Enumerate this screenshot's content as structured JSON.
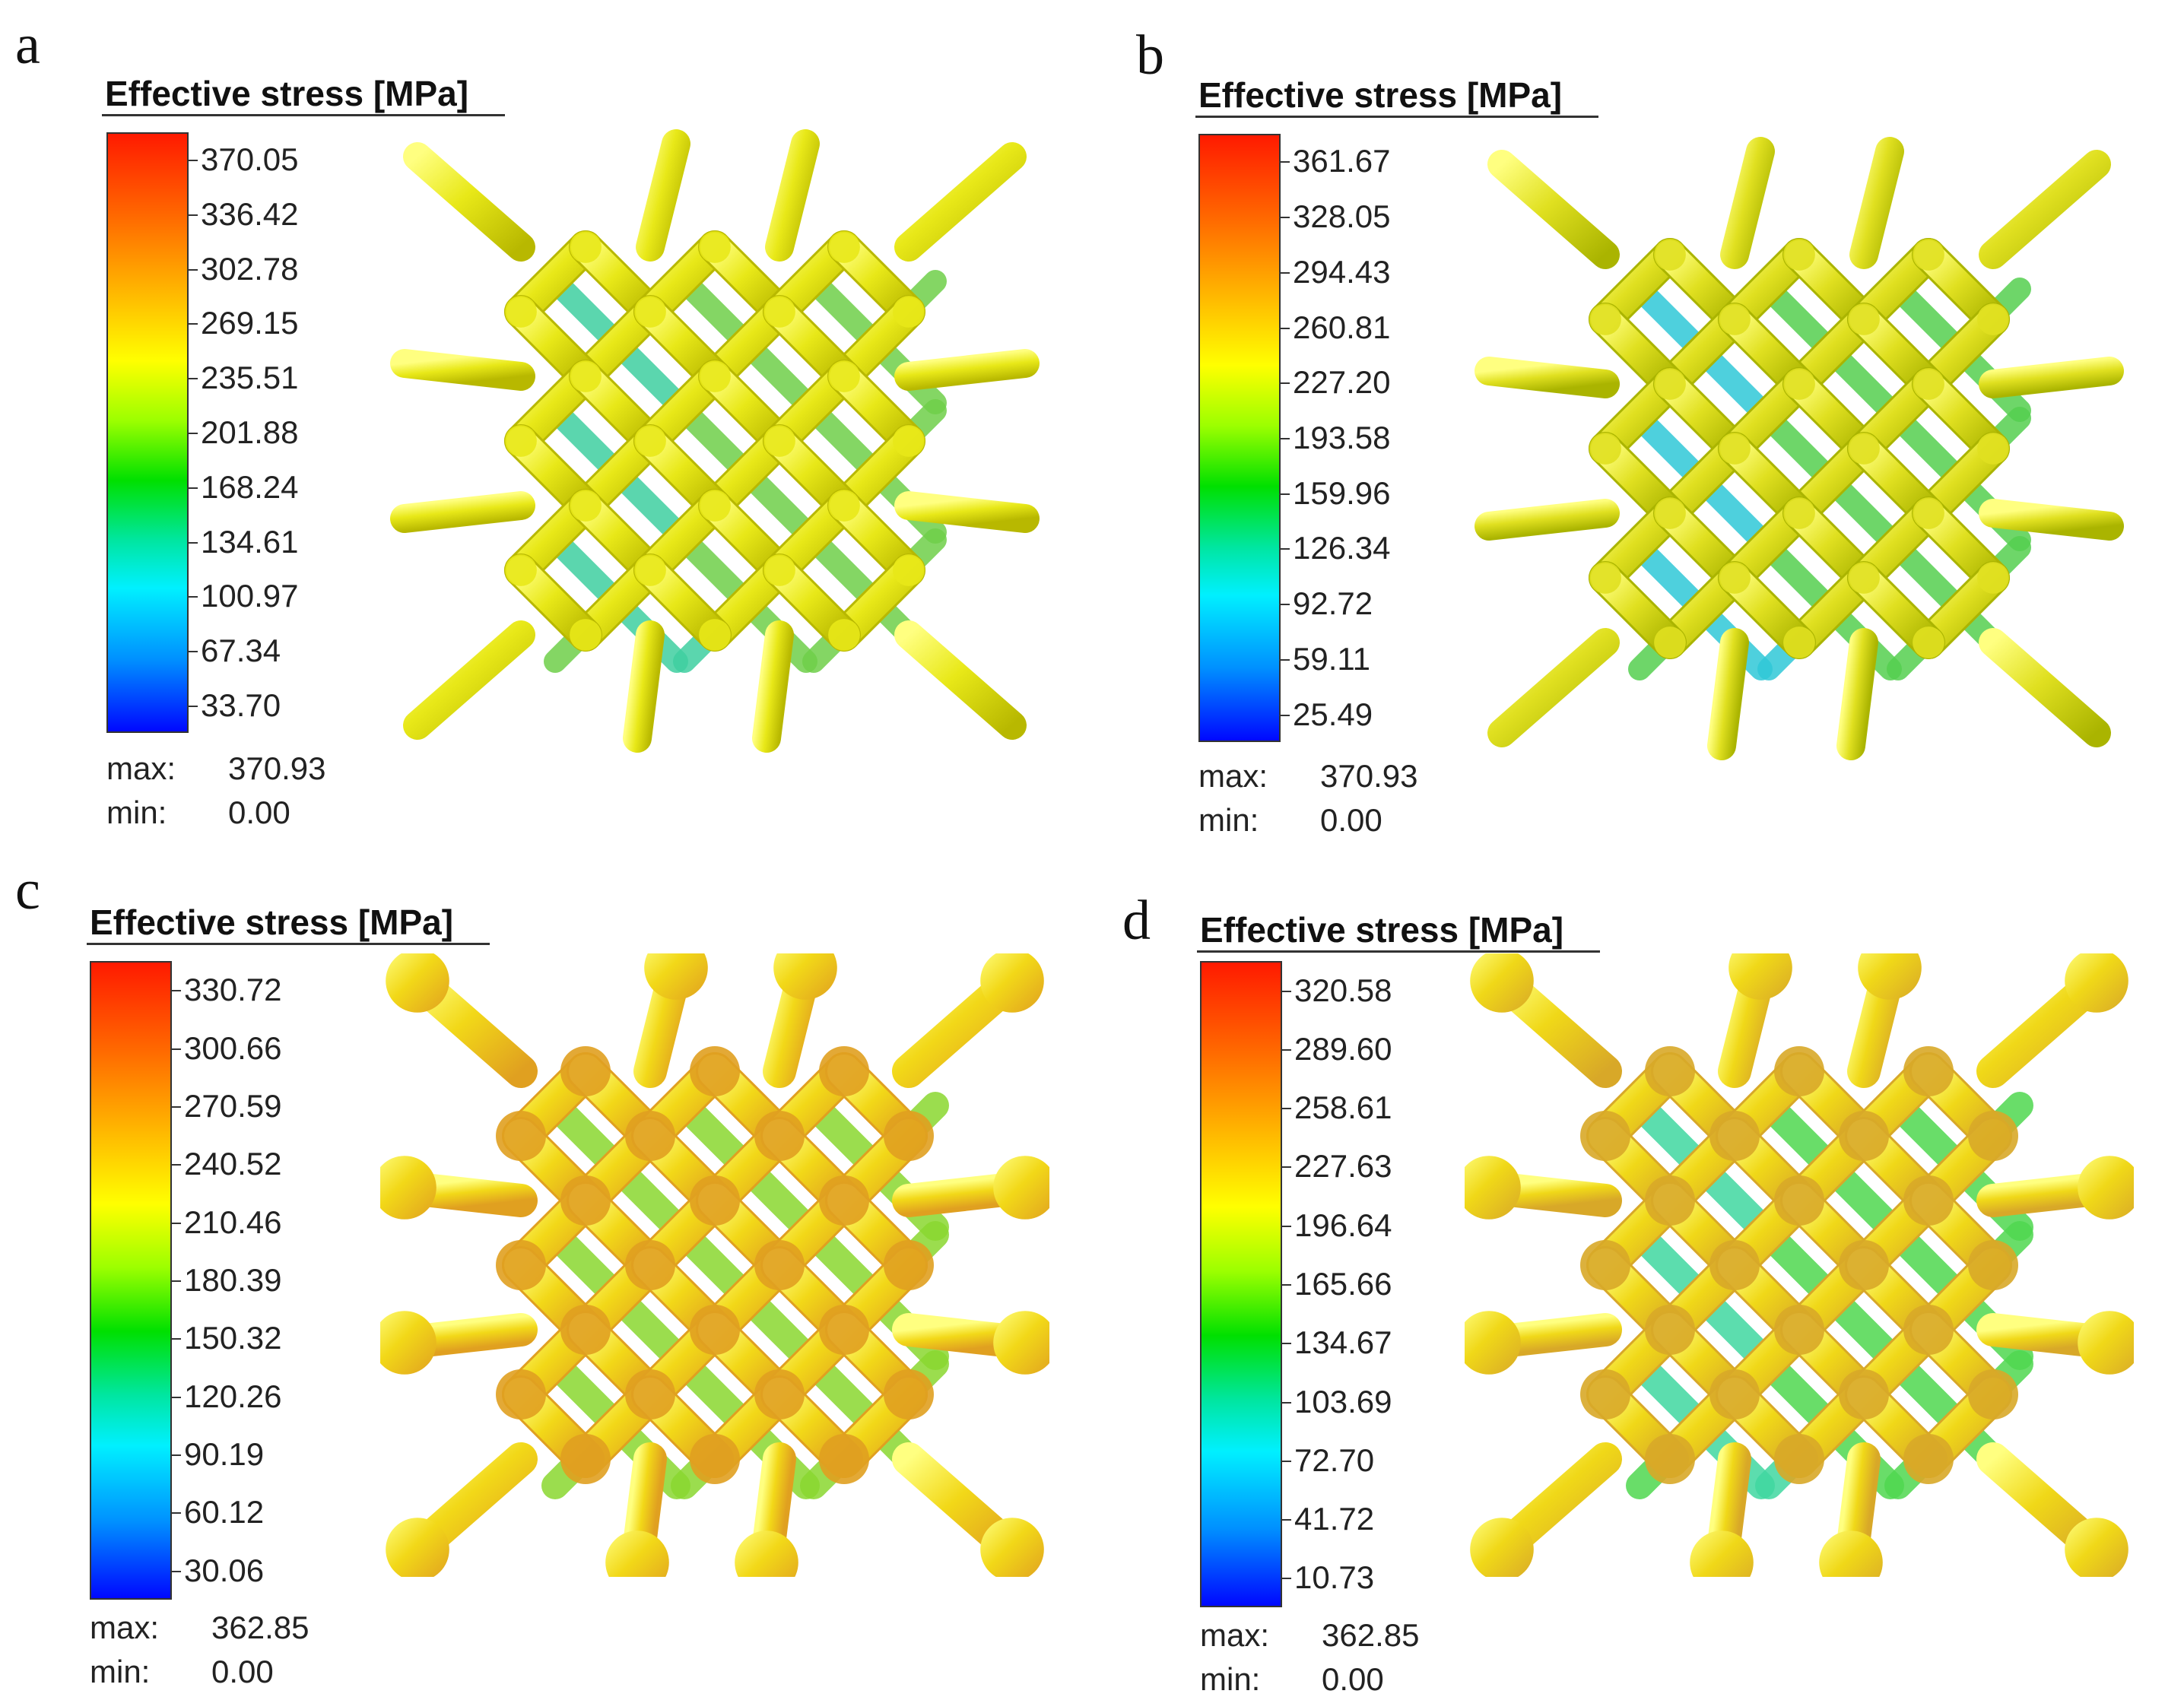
{
  "panels": [
    {
      "letter": "a",
      "legend_title": "Effective stress [MPa]",
      "ticks": [
        "370.05",
        "336.42",
        "302.78",
        "269.15",
        "235.51",
        "201.88",
        "168.24",
        "134.61",
        "100.97",
        "67.34",
        "33.70"
      ],
      "max_label": "max:",
      "max_value": "370.93",
      "min_label": "min:",
      "min_value": "0.00",
      "lattice": "straight-strut",
      "colors": {
        "main": "#e8e818",
        "shade": "#b8b800",
        "accent": "#6fd04a",
        "low": "#3fd0a0"
      }
    },
    {
      "letter": "b",
      "legend_title": "Effective stress [MPa]",
      "ticks": [
        "361.67",
        "328.05",
        "294.43",
        "260.81",
        "227.20",
        "193.58",
        "159.96",
        "126.34",
        "92.72",
        "59.11",
        "25.49"
      ],
      "max_label": "max:",
      "max_value": "370.93",
      "min_label": "min:",
      "min_value": "0.00",
      "lattice": "straight-strut",
      "colors": {
        "main": "#e0e020",
        "shade": "#aab400",
        "accent": "#55d050",
        "low": "#30c8d8"
      }
    },
    {
      "letter": "c",
      "legend_title": "Effective stress [MPa]",
      "ticks": [
        "330.72",
        "300.66",
        "270.59",
        "240.52",
        "210.46",
        "180.39",
        "150.32",
        "120.26",
        "90.19",
        "60.12",
        "30.06"
      ],
      "max_label": "max:",
      "max_value": "362.85",
      "min_label": "min:",
      "min_value": "0.00",
      "lattice": "tapered-strut",
      "colors": {
        "main": "#f2d818",
        "shade": "#e0a020",
        "accent": "#8ad830",
        "low": "#8ad830"
      }
    },
    {
      "letter": "d",
      "legend_title": "Effective stress [MPa]",
      "ticks": [
        "320.58",
        "289.60",
        "258.61",
        "227.63",
        "196.64",
        "165.66",
        "134.67",
        "103.69",
        "72.70",
        "41.72",
        "10.73"
      ],
      "max_label": "max:",
      "max_value": "362.85",
      "min_label": "min:",
      "min_value": "0.00",
      "lattice": "tapered-strut",
      "colors": {
        "main": "#f0d818",
        "shade": "#d8a828",
        "accent": "#50d850",
        "low": "#40d8a0"
      }
    }
  ]
}
